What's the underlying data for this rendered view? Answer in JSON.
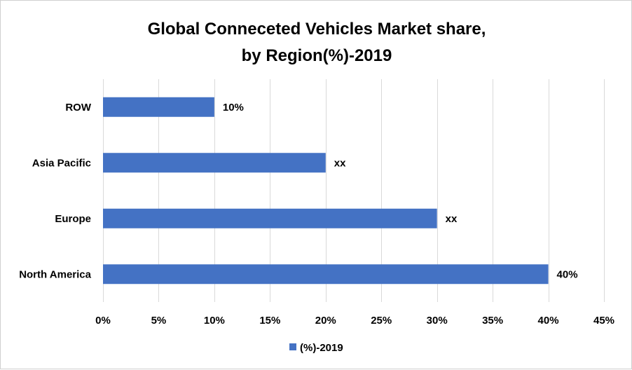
{
  "chart_data": {
    "type": "bar",
    "orientation": "horizontal",
    "title": [
      "Global Conneceted Vehicles Market share,",
      "by Region(%)-2019"
    ],
    "categories": [
      "North America",
      "Europe",
      "Asia Pacific",
      "ROW"
    ],
    "series": [
      {
        "name": "(%)-2019",
        "color": "#4472C4",
        "values": [
          40,
          30,
          20,
          10
        ],
        "data_labels": [
          "40%",
          "xx",
          "xx",
          "10%"
        ]
      }
    ],
    "xlabel": "",
    "ylabel": "",
    "xlim": [
      0,
      45
    ],
    "x_ticks": [
      0,
      5,
      10,
      15,
      20,
      25,
      30,
      35,
      40,
      45
    ],
    "x_tick_labels": [
      "0%",
      "5%",
      "10%",
      "15%",
      "20%",
      "25%",
      "30%",
      "35%",
      "40%",
      "45%"
    ],
    "grid": true,
    "legend": {
      "position": "bottom",
      "entries": [
        "(%)-2019"
      ]
    }
  }
}
